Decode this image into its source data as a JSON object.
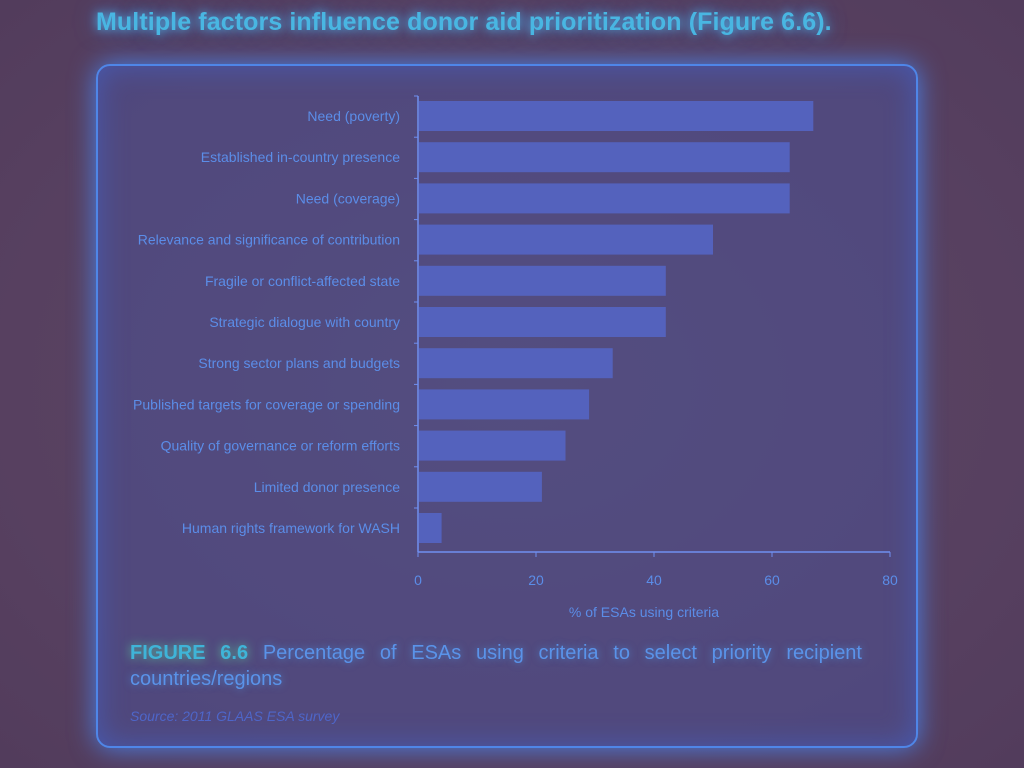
{
  "headline": "Multiple factors influence donor aid prioritization (Figure 6.6).",
  "caption": {
    "figure_label": "FIGURE 6.6",
    "text": "Percentage of ESAs using criteria to select priority recipient countries/regions"
  },
  "source": "Source: 2011 GLAAS ESA survey",
  "colors": {
    "bar": "#5566c8",
    "axis": "#6f8ff0",
    "label": "#5b8de8"
  },
  "chart_data": {
    "type": "bar",
    "orientation": "horizontal",
    "categories": [
      "Need (poverty)",
      "Established in-country presence",
      "Need (coverage)",
      "Relevance and significance of contribution",
      "Fragile or conflict-affected state",
      "Strategic dialogue with country",
      "Strong sector plans and budgets",
      "Published targets for coverage or spending",
      "Quality of governance or reform efforts",
      "Limited donor presence",
      "Human rights framework for WASH"
    ],
    "values": [
      67,
      63,
      63,
      50,
      42,
      42,
      33,
      29,
      25,
      21,
      4
    ],
    "xlabel": "% of ESAs using criteria",
    "ylabel": "",
    "xlim": [
      0,
      80
    ],
    "xticks": [
      0,
      20,
      40,
      60,
      80
    ],
    "grid": false
  }
}
